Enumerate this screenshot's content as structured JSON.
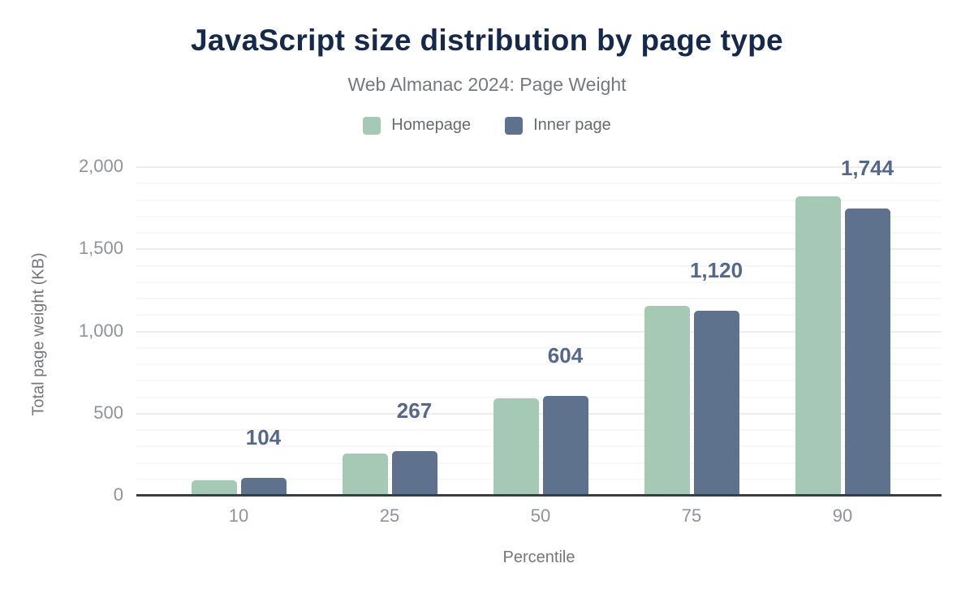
{
  "header": {
    "title": "JavaScript size distribution by page type",
    "subtitle": "Web Almanac 2024: Page Weight"
  },
  "legend": [
    {
      "label": "Homepage",
      "color": "#a6c9b6"
    },
    {
      "label": "Inner page",
      "color": "#5e718d"
    }
  ],
  "chart_data": {
    "type": "bar",
    "title": "JavaScript size distribution by page type",
    "subtitle": "Web Almanac 2024: Page Weight",
    "xlabel": "Percentile",
    "ylabel": "Total page weight (KB)",
    "categories": [
      "10",
      "25",
      "50",
      "75",
      "90"
    ],
    "series": [
      {
        "name": "Homepage",
        "color": "#a6c9b6",
        "values": [
          87,
          250,
          589,
          1152,
          1815
        ]
      },
      {
        "name": "Inner page",
        "color": "#5e718d",
        "values": [
          104,
          267,
          604,
          1120,
          1744
        ],
        "labels": [
          "104",
          "267",
          "604",
          "1,120",
          "1,744"
        ]
      }
    ],
    "ylim": [
      0,
      2000
    ],
    "yticks": [
      0,
      500,
      1000,
      1500,
      2000
    ],
    "ytick_labels": [
      "0",
      "500",
      "1,000",
      "1,500",
      "2,000"
    ],
    "minor_grid_step": 100,
    "major_grid_step": 500,
    "grid": true,
    "legend_position": "top",
    "value_labels_on": "Inner page",
    "colors": {
      "title": "#16294a",
      "subtitle": "#76797b",
      "axis_text": "#8d929b",
      "axis_title": "#74777c",
      "value_label": "#55688c",
      "axis_line": "#383d44"
    }
  }
}
